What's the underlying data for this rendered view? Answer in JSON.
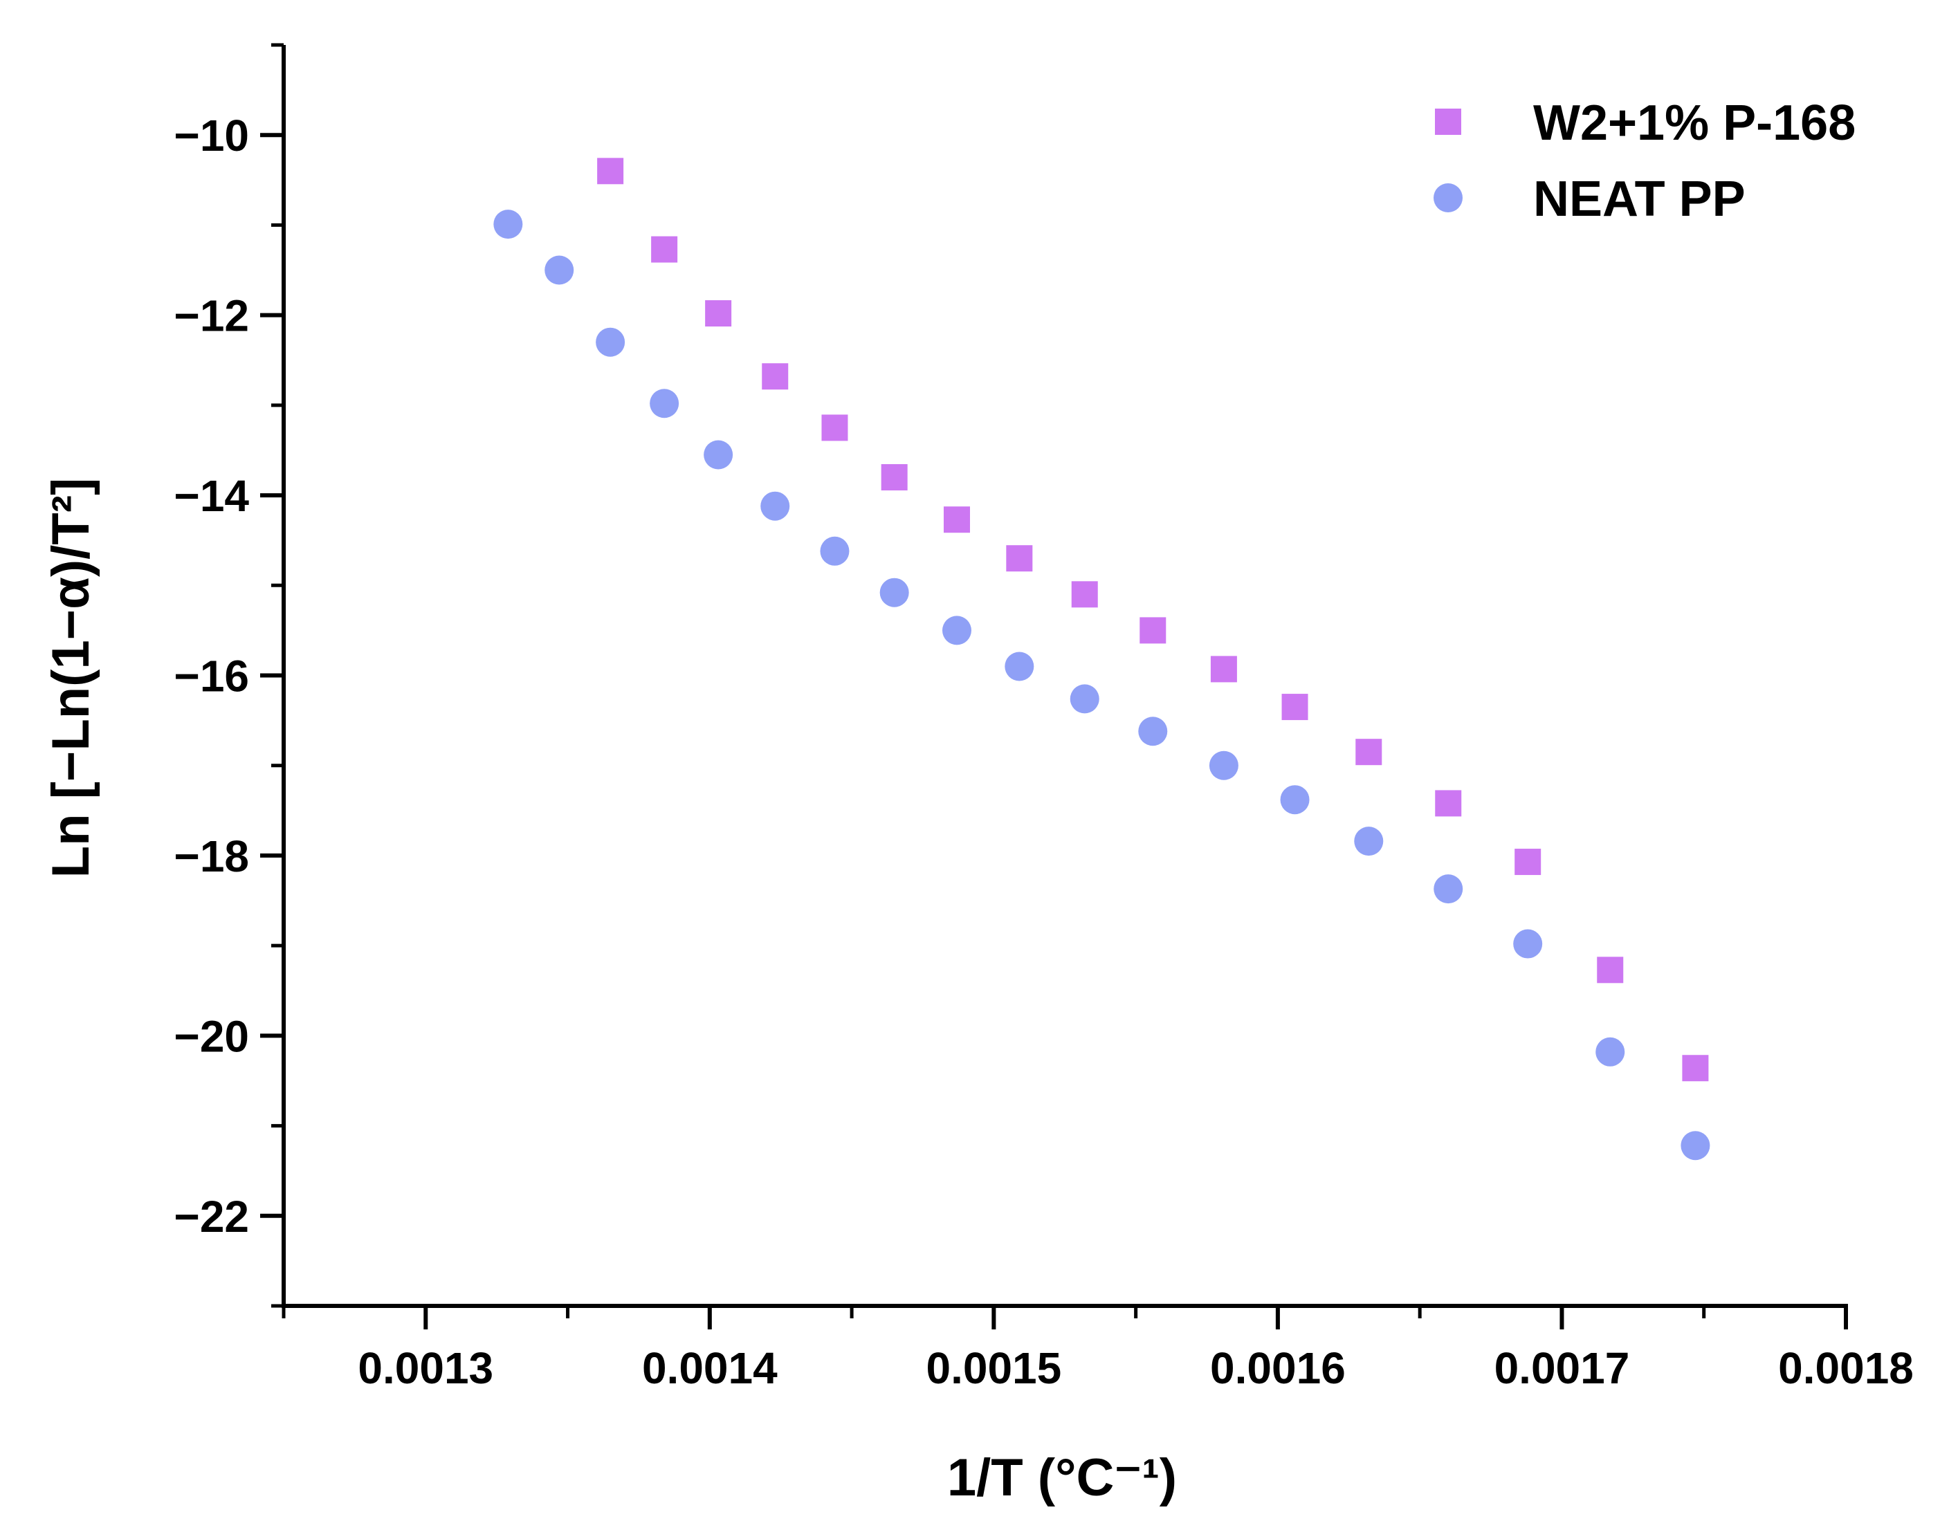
{
  "chart_data": {
    "type": "scatter",
    "title": "",
    "xlabel": "1/T (°C⁻¹)",
    "ylabel": "Ln [−Ln(1−α)/T²]",
    "xlim": [
      0.00125,
      0.0018
    ],
    "ylim": [
      -23,
      -9
    ],
    "x_ticks": [
      0.0013,
      0.0014,
      0.0015,
      0.0016,
      0.0017,
      0.0018
    ],
    "x_tick_labels": [
      "0.0013",
      "0.0014",
      "0.0015",
      "0.0016",
      "0.0017",
      "0.0018"
    ],
    "y_ticks": [
      -10,
      -12,
      -14,
      -16,
      -18,
      -20,
      -22
    ],
    "y_tick_labels": [
      "−10",
      "−12",
      "−14",
      "−16",
      "−18",
      "−20",
      "−22"
    ],
    "grid": false,
    "legend_position": "top-right",
    "series": [
      {
        "name": "W2+1% P-168",
        "marker": "square",
        "color": "#cc77f2",
        "x": [
          0.001365,
          0.001384,
          0.001403,
          0.001423,
          0.001444,
          0.001465,
          0.001487,
          0.001509,
          0.001532,
          0.001556,
          0.001581,
          0.001606,
          0.001632,
          0.00166,
          0.001688,
          0.001717,
          0.001747
        ],
        "y": [
          -10.4,
          -11.27,
          -11.98,
          -12.68,
          -13.25,
          -13.8,
          -14.27,
          -14.7,
          -15.1,
          -15.5,
          -15.93,
          -16.35,
          -16.85,
          -17.42,
          -18.07,
          -19.27,
          -20.36
        ]
      },
      {
        "name": "NEAT PP",
        "marker": "circle",
        "color": "#8fa0f6",
        "x": [
          0.001329,
          0.001347,
          0.001365,
          0.001384,
          0.001403,
          0.001423,
          0.001444,
          0.001465,
          0.001487,
          0.001509,
          0.001532,
          0.001556,
          0.001581,
          0.001606,
          0.001632,
          0.00166,
          0.001688,
          0.001717,
          0.001747
        ],
        "y": [
          -10.99,
          -11.5,
          -12.3,
          -12.98,
          -13.55,
          -14.12,
          -14.62,
          -15.08,
          -15.5,
          -15.9,
          -16.26,
          -16.62,
          -17.0,
          -17.38,
          -17.84,
          -18.37,
          -18.98,
          -20.18,
          -21.22
        ]
      }
    ]
  }
}
